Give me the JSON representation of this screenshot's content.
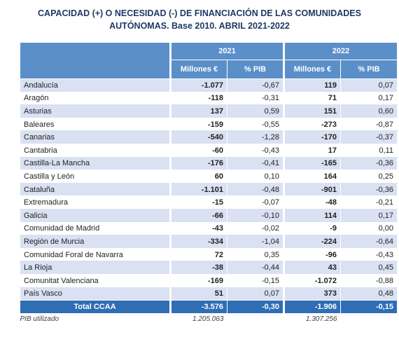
{
  "title_line1": "CAPACIDAD (+) O NECESIDAD (-) DE FINANCIACIÓN DE LAS COMUNIDADES",
  "title_line2": "AUTÓNOMAS. Base 2010. ABRIL  2021-2022",
  "years": [
    "2021",
    "2022"
  ],
  "col_headers": [
    "Millones €",
    "% PIB",
    "Millones €",
    "% PIB"
  ],
  "rows": [
    {
      "name": "Andalucía",
      "v": [
        "-1.077",
        "-0,67",
        "119",
        "0,07"
      ]
    },
    {
      "name": "Aragón",
      "v": [
        "-118",
        "-0,31",
        "71",
        "0,17"
      ]
    },
    {
      "name": "Asturias",
      "v": [
        "137",
        "0,59",
        "151",
        "0,60"
      ]
    },
    {
      "name": "Baleares",
      "v": [
        "-159",
        "-0,55",
        "-273",
        "-0,87"
      ]
    },
    {
      "name": "Canarias",
      "v": [
        "-540",
        "-1,28",
        "-170",
        "-0,37"
      ]
    },
    {
      "name": "Cantabria",
      "v": [
        "-60",
        "-0,43",
        "17",
        "0,11"
      ]
    },
    {
      "name": "Castilla-La Mancha",
      "v": [
        "-176",
        "-0,41",
        "-165",
        "-0,36"
      ]
    },
    {
      "name": "Castilla y León",
      "v": [
        "60",
        "0,10",
        "164",
        "0,25"
      ]
    },
    {
      "name": "Cataluña",
      "v": [
        "-1.101",
        "-0,48",
        "-901",
        "-0,36"
      ]
    },
    {
      "name": "Extremadura",
      "v": [
        "-15",
        "-0,07",
        "-48",
        "-0,21"
      ]
    },
    {
      "name": "Galicia",
      "v": [
        "-66",
        "-0,10",
        "114",
        "0,17"
      ]
    },
    {
      "name": "Comunidad de Madrid",
      "v": [
        "-43",
        "-0,02",
        "-9",
        "0,00"
      ]
    },
    {
      "name": "Región de Murcia",
      "v": [
        "-334",
        "-1,04",
        "-224",
        "-0,64"
      ]
    },
    {
      "name": "Comunidad Foral de Navarra",
      "v": [
        "72",
        "0,35",
        "-96",
        "-0,43"
      ]
    },
    {
      "name": "La Rioja",
      "v": [
        "-38",
        "-0,44",
        "43",
        "0,45"
      ]
    },
    {
      "name": "Comunitat Valenciana",
      "v": [
        "-169",
        "-0,15",
        "-1.072",
        "-0,88"
      ]
    },
    {
      "name": "País Vasco",
      "v": [
        "51",
        "0,07",
        "373",
        "0,48"
      ]
    }
  ],
  "total": {
    "name": "Total CCAA",
    "v": [
      "-3.576",
      "-0,30",
      "-1.906",
      "-0,15"
    ]
  },
  "note": {
    "label": "PIB utilizado",
    "pib_2021": "1.205.063",
    "pib_2022": "1.307.256"
  }
}
